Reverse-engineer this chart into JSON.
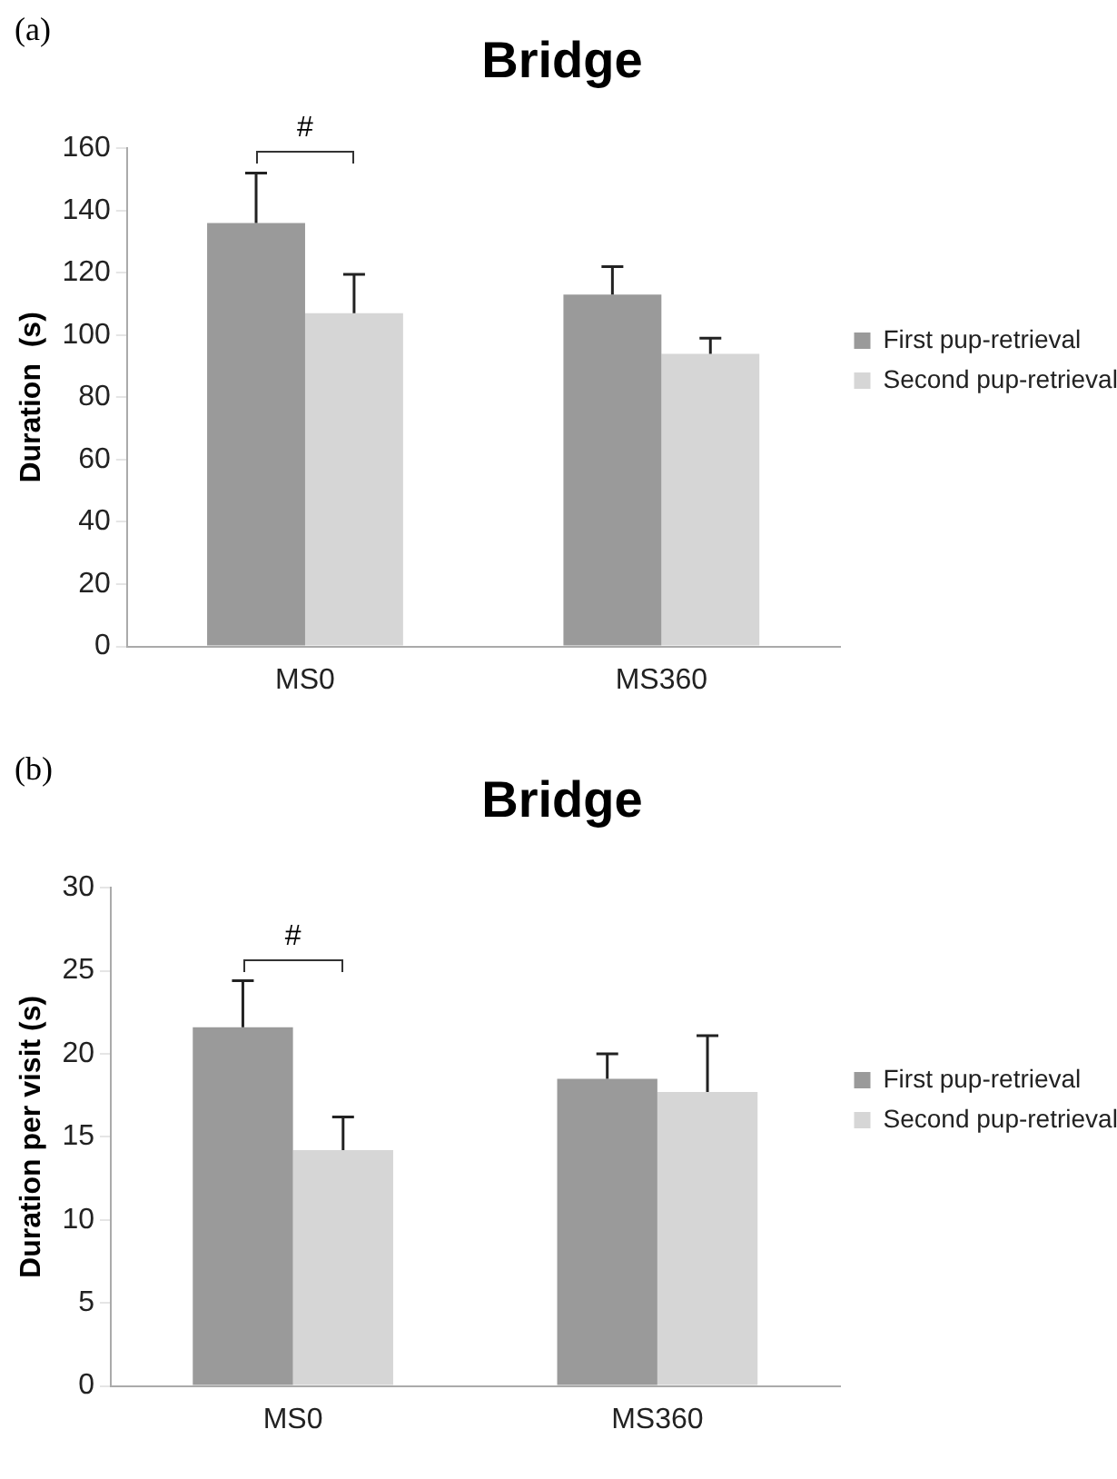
{
  "chart_data": [
    {
      "type": "bar",
      "title": "Bridge",
      "ylabel": "Duration  (s)",
      "categories": [
        "MS0",
        "MS360"
      ],
      "series": [
        {
          "name": "First pup-retrieval",
          "color": "#9a9a9a",
          "values": [
            136,
            113
          ],
          "errors": [
            [
              136,
              152
            ],
            [
              113,
              122
            ]
          ]
        },
        {
          "name": "Second pup-retrieval",
          "color": "#d6d6d6",
          "values": [
            107,
            94
          ],
          "errors": [
            [
              107,
              119.5
            ],
            [
              94,
              99
            ]
          ]
        }
      ],
      "ylim": [
        0,
        160
      ],
      "yticks": [
        0,
        20,
        40,
        60,
        80,
        100,
        120,
        140,
        160
      ],
      "grid": false,
      "legend": "right",
      "annotations": [
        "(a)",
        "#"
      ]
    },
    {
      "type": "bar",
      "title": "Bridge",
      "ylabel": "Duration per visit (s)",
      "categories": [
        "MS0",
        "MS360"
      ],
      "series": [
        {
          "name": "First pup-retrieval",
          "color": "#9a9a9a",
          "values": [
            21.6,
            18.5
          ],
          "errors": [
            [
              21.6,
              24.4
            ],
            [
              18.5,
              20
            ]
          ]
        },
        {
          "name": "Second pup-retrieval",
          "color": "#d6d6d6",
          "values": [
            14.2,
            17.7
          ],
          "errors": [
            [
              14.2,
              16.2
            ],
            [
              17.7,
              21.1
            ]
          ]
        }
      ],
      "ylim": [
        0,
        30
      ],
      "yticks": [
        0,
        5,
        10,
        15,
        20,
        25,
        30
      ],
      "grid": false,
      "legend": "right",
      "annotations": [
        "(b)",
        "#"
      ]
    }
  ]
}
